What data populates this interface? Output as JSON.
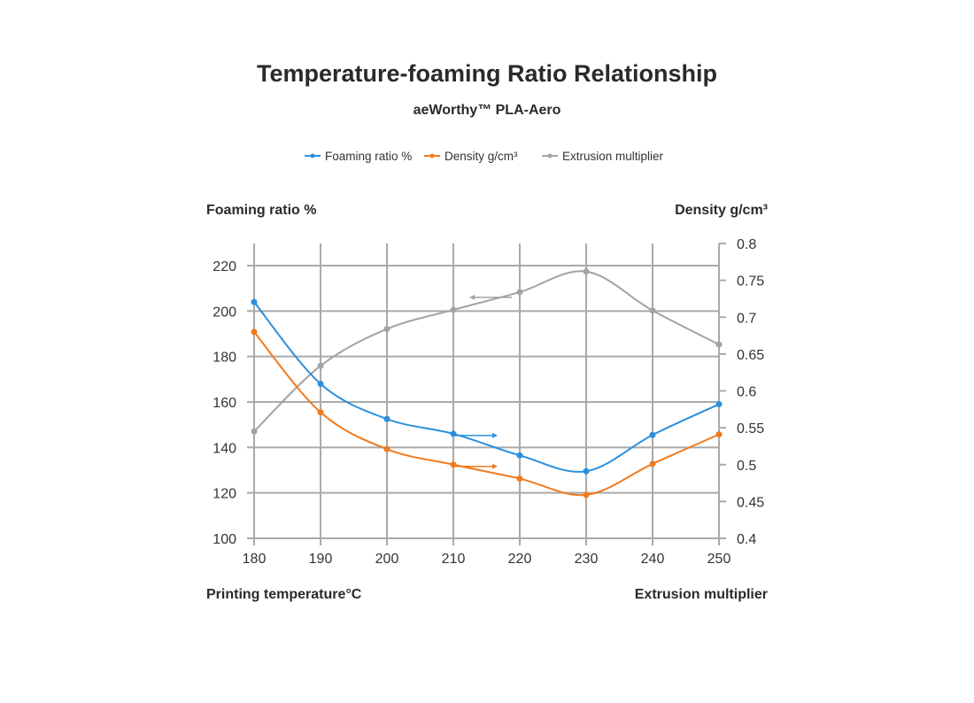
{
  "chart_data": {
    "type": "line",
    "title": "Temperature-foaming Ratio Relationship",
    "subtitle": "aeWorthy™ PLA-Aero",
    "xlabel": "Printing temperature°C",
    "ylabel_left": "Foaming ratio %",
    "ylabel_right": "Density g/cm³",
    "xlabel_right": "Extrusion multiplier",
    "x": [
      180,
      190,
      200,
      210,
      220,
      230,
      240,
      250
    ],
    "x_ticks": [
      "180",
      "190",
      "200",
      "210",
      "220",
      "230",
      "240",
      "250"
    ],
    "xlim": [
      180,
      250
    ],
    "ylim_left": [
      100,
      220
    ],
    "y_ticks_left": [
      "100",
      "120",
      "140",
      "160",
      "180",
      "200",
      "220"
    ],
    "ylim_right": [
      0.4,
      0.8
    ],
    "y_ticks_right": [
      "0.4",
      "0.45",
      "0.5",
      "0.55",
      "0.6",
      "0.65",
      "0.7",
      "0.75",
      "0.8"
    ],
    "grid": true,
    "legend_position": "top-center",
    "series": [
      {
        "name": "Foaming ratio %",
        "axis": "left",
        "color": "#2b8fdc",
        "values": [
          204,
          168,
          152.5,
          146,
          136.5,
          129.5,
          145.5,
          159
        ],
        "arrow": "right"
      },
      {
        "name": "Density g/cm³",
        "axis": "right",
        "color": "#f07a1e",
        "values": [
          0.68,
          0.571,
          0.521,
          0.5,
          0.481,
          0.459,
          0.501,
          0.541
        ],
        "arrow": "right"
      },
      {
        "name": "Extrusion multiplier",
        "axis": "right",
        "color": "#a3a3a3",
        "values": [
          0.545,
          0.634,
          0.684,
          0.71,
          0.734,
          0.762,
          0.709,
          0.663
        ],
        "arrow": "left"
      }
    ]
  }
}
